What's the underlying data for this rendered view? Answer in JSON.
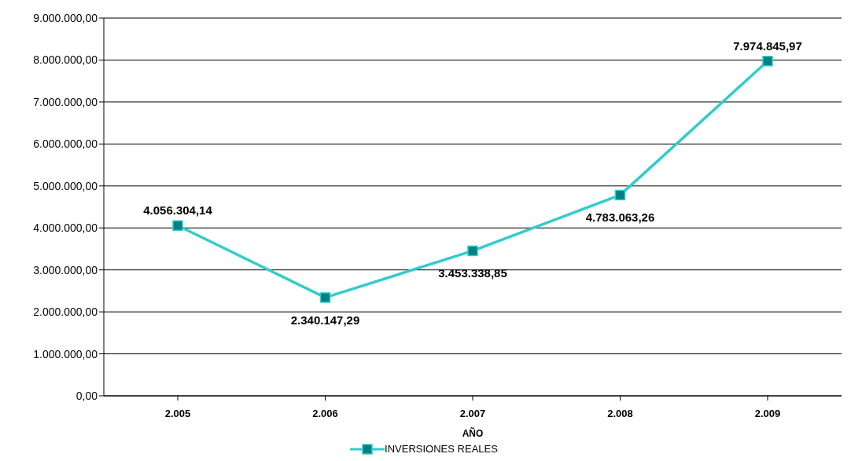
{
  "chart_data": {
    "type": "line",
    "xlabel": "AÑO",
    "categories": [
      "2.005",
      "2.006",
      "2.007",
      "2.008",
      "2.009"
    ],
    "series": [
      {
        "name": "INVERSIONES REALES",
        "color": "#33cccc",
        "values": [
          4056304.14,
          2340147.29,
          3453338.85,
          4783063.26,
          7974845.97
        ],
        "value_labels": [
          "4.056.304,14",
          "2.340.147,29",
          "3.453.338,85",
          "4.783.063,26",
          "7.974.845,97"
        ]
      }
    ],
    "ylim": [
      0,
      9000000
    ],
    "yticks": [
      {
        "value": 0,
        "label": "0,00"
      },
      {
        "value": 1000000,
        "label": "1.000.000,00"
      },
      {
        "value": 2000000,
        "label": "2.000.000,00"
      },
      {
        "value": 3000000,
        "label": "3.000.000,00"
      },
      {
        "value": 4000000,
        "label": "4.000.000,00"
      },
      {
        "value": 5000000,
        "label": "5.000.000,00"
      },
      {
        "value": 6000000,
        "label": "6.000.000,00"
      },
      {
        "value": 7000000,
        "label": "7.000.000,00"
      },
      {
        "value": 8000000,
        "label": "8.000.000,00"
      },
      {
        "value": 9000000,
        "label": "9.000.000,00"
      }
    ],
    "grid": "y",
    "marker": "square",
    "legend": "bottom"
  }
}
